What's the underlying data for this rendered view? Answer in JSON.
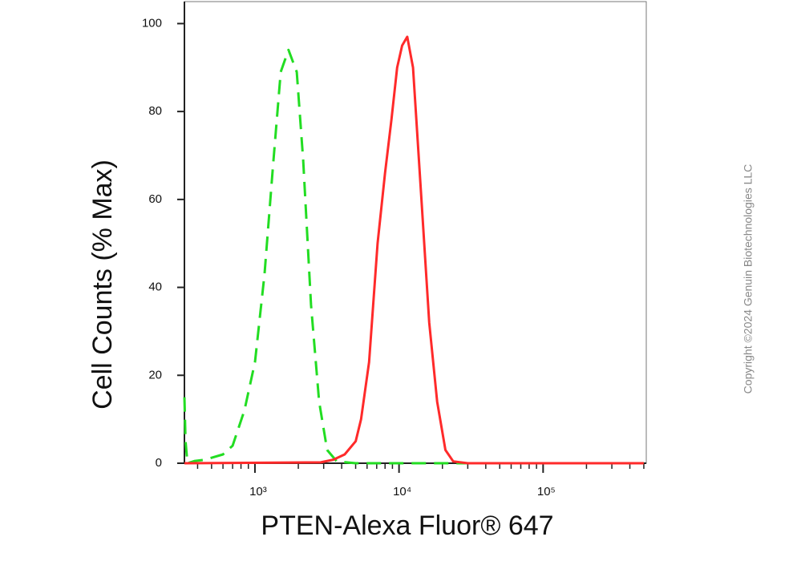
{
  "chart_data": {
    "type": "line",
    "xlabel": "PTEN-Alexa Fluor® 647",
    "ylabel": "Cell Counts (% Max)",
    "annotation": "Copyright ©2024 Genuin Biotechnologies LLC",
    "xscale": "log",
    "xlim": [
      324,
      520000
    ],
    "ylim": [
      0,
      105
    ],
    "xticks": [
      {
        "value": 1000,
        "label": "10³"
      },
      {
        "value": 10000,
        "label": "10⁴"
      },
      {
        "value": 100000,
        "label": "10⁵"
      }
    ],
    "xminorticks": [
      400,
      500,
      600,
      700,
      800,
      900,
      2000,
      3000,
      4000,
      5000,
      6000,
      7000,
      8000,
      9000,
      20000,
      30000,
      40000,
      50000,
      60000,
      70000,
      80000,
      90000,
      200000,
      300000,
      400000,
      500000
    ],
    "yticks": [
      0,
      20,
      40,
      60,
      80,
      100
    ],
    "series": [
      {
        "color": "#22dd22",
        "dashed": true,
        "x": [
          324,
          330,
          340,
          380,
          450,
          600,
          700,
          845,
          1000,
          1166,
          1330,
          1510,
          1710,
          1950,
          2160,
          2450,
          2790,
          3170,
          3700,
          5000,
          500000
        ],
        "values": [
          15,
          5,
          0,
          0.5,
          0.8,
          2,
          4,
          12,
          23,
          43,
          67,
          89,
          94,
          89,
          69,
          36,
          14,
          3,
          0.4,
          0,
          0
        ]
      },
      {
        "color": "#ff2a2a",
        "dashed": false,
        "x": [
          324,
          2860,
          3500,
          4200,
          5000,
          5450,
          6200,
          7100,
          8000,
          8850,
          9700,
          10500,
          11400,
          12500,
          14300,
          16200,
          18400,
          21000,
          23800,
          30000,
          500000
        ],
        "values": [
          0,
          0.2,
          0.8,
          2,
          5,
          10,
          23,
          50,
          66,
          78,
          90,
          95,
          97,
          90,
          60,
          32,
          14,
          3,
          0.4,
          0,
          0
        ]
      }
    ]
  }
}
